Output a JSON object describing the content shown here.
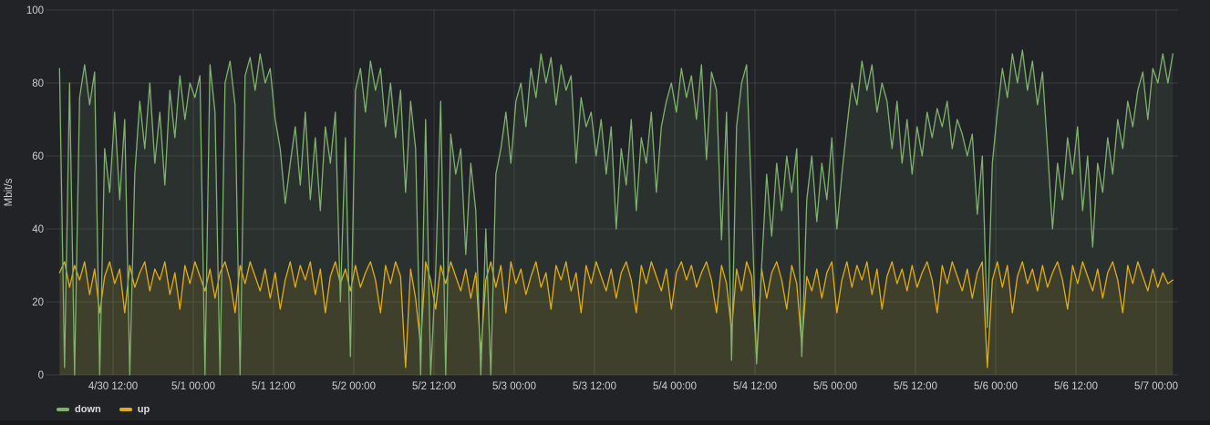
{
  "theme": {
    "background": "#212327",
    "bottom_strip": "#17191b",
    "grid_color": "rgba(255,255,255,0.11)",
    "tick_text_color": "#cdced0",
    "legend_text_color": "#dcddde"
  },
  "legend": {
    "items": [
      {
        "label": "down",
        "color": "#7EB26D"
      },
      {
        "label": "up",
        "color": "#E2AB18"
      }
    ]
  },
  "chart_data": {
    "type": "area",
    "title": "",
    "ylabel": "Mbit/s",
    "xlabel": "",
    "ylim": [
      0,
      100
    ],
    "yticks": [
      0,
      20,
      40,
      60,
      80,
      100
    ],
    "grid": true,
    "legend_position": "bottom-left",
    "x_axis_note": "hours offset from 4/30 00:00",
    "xticks": [
      {
        "hour": 12,
        "label": "4/30 12:00"
      },
      {
        "hour": 24,
        "label": "5/1 00:00"
      },
      {
        "hour": 36,
        "label": "5/1 12:00"
      },
      {
        "hour": 48,
        "label": "5/2 00:00"
      },
      {
        "hour": 60,
        "label": "5/2 12:00"
      },
      {
        "hour": 72,
        "label": "5/3 00:00"
      },
      {
        "hour": 84,
        "label": "5/3 12:00"
      },
      {
        "hour": 96,
        "label": "5/4 00:00"
      },
      {
        "hour": 108,
        "label": "5/4 12:00"
      },
      {
        "hour": 120,
        "label": "5/5 00:00"
      },
      {
        "hour": 132,
        "label": "5/5 12:00"
      },
      {
        "hour": 144,
        "label": "5/6 00:00"
      },
      {
        "hour": 156,
        "label": "5/6 12:00"
      },
      {
        "hour": 168,
        "label": "5/7 00:00"
      }
    ],
    "sample_start_hour": 4,
    "sample_step_hours": 0.75,
    "unit": "Mbit/s",
    "series": [
      {
        "name": "down",
        "color": "#7EB26D",
        "fill": "rgba(126,178,109,0.10)",
        "values": [
          84,
          2,
          80,
          0,
          76,
          85,
          74,
          83,
          0,
          62,
          50,
          72,
          48,
          70,
          0,
          55,
          75,
          62,
          80,
          58,
          72,
          52,
          78,
          65,
          82,
          70,
          80,
          76,
          82,
          0,
          85,
          72,
          0,
          80,
          86,
          74,
          0,
          82,
          87,
          78,
          88,
          80,
          84,
          70,
          62,
          47,
          58,
          68,
          52,
          72,
          48,
          65,
          45,
          68,
          58,
          72,
          20,
          65,
          5,
          78,
          84,
          72,
          86,
          78,
          84,
          68,
          80,
          65,
          78,
          50,
          75,
          62,
          0,
          70,
          0,
          28,
          75,
          0,
          66,
          55,
          62,
          33,
          58,
          45,
          0,
          40,
          0,
          55,
          62,
          72,
          58,
          75,
          80,
          68,
          84,
          76,
          88,
          80,
          87,
          74,
          85,
          78,
          82,
          58,
          76,
          68,
          72,
          60,
          70,
          55,
          68,
          40,
          62,
          52,
          70,
          45,
          65,
          58,
          72,
          50,
          68,
          75,
          80,
          72,
          84,
          76,
          82,
          70,
          85,
          59,
          83,
          78,
          37,
          72,
          4,
          68,
          80,
          85,
          48,
          3,
          30,
          55,
          38,
          58,
          45,
          60,
          50,
          62,
          5,
          48,
          60,
          42,
          58,
          48,
          65,
          40,
          55,
          68,
          80,
          74,
          86,
          78,
          85,
          72,
          80,
          75,
          62,
          75,
          58,
          70,
          55,
          68,
          60,
          72,
          65,
          73,
          68,
          75,
          62,
          70,
          66,
          60,
          66,
          44,
          60,
          13,
          58,
          72,
          84,
          76,
          88,
          80,
          89,
          78,
          86,
          74,
          83,
          62,
          40,
          58,
          48,
          65,
          55,
          68,
          45,
          60,
          35,
          58,
          50,
          65,
          55,
          70,
          62,
          75,
          68,
          78,
          83,
          70,
          84,
          80,
          88,
          80,
          88
        ]
      },
      {
        "name": "up",
        "color": "#E2AB18",
        "fill": "rgba(226,171,24,0.12)",
        "values": [
          28,
          31,
          24,
          30,
          26,
          31,
          22,
          29,
          17,
          27,
          31,
          25,
          29,
          17,
          30,
          24,
          28,
          31,
          23,
          29,
          26,
          31,
          22,
          28,
          18,
          30,
          25,
          31,
          27,
          23,
          29,
          21,
          28,
          31,
          26,
          17,
          30,
          25,
          31,
          27,
          23,
          29,
          21,
          28,
          18,
          26,
          31,
          24,
          30,
          26,
          31,
          22,
          29,
          17,
          27,
          31,
          25,
          29,
          23,
          30,
          24,
          28,
          31,
          26,
          17,
          30,
          25,
          31,
          27,
          2,
          29,
          21,
          8,
          31,
          26,
          18,
          30,
          25,
          31,
          27,
          23,
          29,
          21,
          28,
          6,
          26,
          31,
          24,
          30,
          17,
          31,
          25,
          29,
          22,
          27,
          31,
          24,
          28,
          18,
          30,
          26,
          31,
          23,
          28,
          17,
          30,
          25,
          31,
          27,
          23,
          29,
          21,
          28,
          31,
          26,
          17,
          30,
          25,
          31,
          27,
          23,
          29,
          18,
          28,
          31,
          26,
          30,
          24,
          28,
          31,
          26,
          17,
          30,
          25,
          12,
          29,
          23,
          31,
          27,
          5,
          29,
          21,
          28,
          31,
          26,
          18,
          30,
          25,
          8,
          27,
          23,
          29,
          21,
          28,
          31,
          17,
          26,
          31,
          24,
          30,
          26,
          31,
          22,
          29,
          18,
          27,
          31,
          25,
          29,
          23,
          30,
          24,
          28,
          31,
          26,
          17,
          30,
          25,
          31,
          27,
          23,
          29,
          21,
          28,
          31,
          2,
          26,
          31,
          24,
          30,
          17,
          27,
          31,
          25,
          29,
          23,
          30,
          24,
          28,
          31,
          26,
          18,
          30,
          25,
          31,
          27,
          23,
          29,
          21,
          28,
          31,
          26,
          17,
          30,
          25,
          31,
          27,
          23,
          29,
          24,
          28,
          25,
          26
        ]
      }
    ]
  }
}
